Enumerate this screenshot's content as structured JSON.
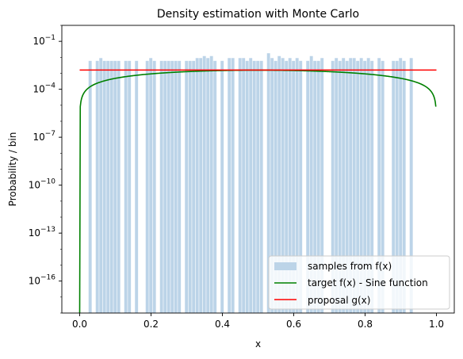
{
  "chart_data": {
    "type": "bar",
    "title": "Density estimation with Monte Carlo",
    "xlabel": "x",
    "ylabel": "Probability / bin",
    "xlim": [
      -0.05,
      1.05
    ],
    "ylim": [
      1e-18,
      1.0
    ],
    "yscale": "log",
    "x_ticks": [
      {
        "value": 0.0,
        "label": "0.0"
      },
      {
        "value": 0.2,
        "label": "0.2"
      },
      {
        "value": 0.4,
        "label": "0.4"
      },
      {
        "value": 0.6,
        "label": "0.6"
      },
      {
        "value": 0.8,
        "label": "0.8"
      },
      {
        "value": 1.0,
        "label": "1.0"
      }
    ],
    "y_ticks": [
      {
        "exp": -1,
        "label_base": "10",
        "label_exp": "−1"
      },
      {
        "exp": -4,
        "label_base": "10",
        "label_exp": "−4"
      },
      {
        "exp": -7,
        "label_base": "10",
        "label_exp": "−7"
      },
      {
        "exp": -10,
        "label_base": "10",
        "label_exp": "−10"
      },
      {
        "exp": -13,
        "label_base": "10",
        "label_exp": "−13"
      },
      {
        "exp": -16,
        "label_base": "10",
        "label_exp": "−16"
      }
    ],
    "histogram": {
      "name": "samples from f(x)",
      "color": "#bcd4e8",
      "bin_width": 0.01,
      "bins": [
        {
          "x": 0.03,
          "y": 0.006
        },
        {
          "x": 0.05,
          "y": 0.006
        },
        {
          "x": 0.06,
          "y": 0.009
        },
        {
          "x": 0.07,
          "y": 0.006
        },
        {
          "x": 0.08,
          "y": 0.006
        },
        {
          "x": 0.09,
          "y": 0.006
        },
        {
          "x": 0.1,
          "y": 0.006
        },
        {
          "x": 0.11,
          "y": 0.006
        },
        {
          "x": 0.13,
          "y": 0.006
        },
        {
          "x": 0.14,
          "y": 0.006
        },
        {
          "x": 0.16,
          "y": 0.006
        },
        {
          "x": 0.19,
          "y": 0.006
        },
        {
          "x": 0.2,
          "y": 0.009
        },
        {
          "x": 0.21,
          "y": 0.006
        },
        {
          "x": 0.23,
          "y": 0.006
        },
        {
          "x": 0.24,
          "y": 0.006
        },
        {
          "x": 0.25,
          "y": 0.006
        },
        {
          "x": 0.26,
          "y": 0.006
        },
        {
          "x": 0.27,
          "y": 0.006
        },
        {
          "x": 0.28,
          "y": 0.006
        },
        {
          "x": 0.3,
          "y": 0.006
        },
        {
          "x": 0.31,
          "y": 0.006
        },
        {
          "x": 0.32,
          "y": 0.006
        },
        {
          "x": 0.33,
          "y": 0.009
        },
        {
          "x": 0.34,
          "y": 0.009
        },
        {
          "x": 0.35,
          "y": 0.012
        },
        {
          "x": 0.36,
          "y": 0.009
        },
        {
          "x": 0.37,
          "y": 0.012
        },
        {
          "x": 0.38,
          "y": 0.006
        },
        {
          "x": 0.4,
          "y": 0.006
        },
        {
          "x": 0.42,
          "y": 0.009
        },
        {
          "x": 0.43,
          "y": 0.009
        },
        {
          "x": 0.45,
          "y": 0.009
        },
        {
          "x": 0.46,
          "y": 0.009
        },
        {
          "x": 0.47,
          "y": 0.006
        },
        {
          "x": 0.48,
          "y": 0.009
        },
        {
          "x": 0.49,
          "y": 0.006
        },
        {
          "x": 0.5,
          "y": 0.006
        },
        {
          "x": 0.51,
          "y": 0.006
        },
        {
          "x": 0.53,
          "y": 0.018
        },
        {
          "x": 0.54,
          "y": 0.009
        },
        {
          "x": 0.55,
          "y": 0.006
        },
        {
          "x": 0.56,
          "y": 0.012
        },
        {
          "x": 0.57,
          "y": 0.009
        },
        {
          "x": 0.58,
          "y": 0.006
        },
        {
          "x": 0.59,
          "y": 0.009
        },
        {
          "x": 0.6,
          "y": 0.006
        },
        {
          "x": 0.61,
          "y": 0.009
        },
        {
          "x": 0.62,
          "y": 0.006
        },
        {
          "x": 0.64,
          "y": 0.006
        },
        {
          "x": 0.65,
          "y": 0.012
        },
        {
          "x": 0.66,
          "y": 0.006
        },
        {
          "x": 0.67,
          "y": 0.006
        },
        {
          "x": 0.68,
          "y": 0.009
        },
        {
          "x": 0.71,
          "y": 0.006
        },
        {
          "x": 0.72,
          "y": 0.009
        },
        {
          "x": 0.73,
          "y": 0.006
        },
        {
          "x": 0.74,
          "y": 0.009
        },
        {
          "x": 0.75,
          "y": 0.006
        },
        {
          "x": 0.76,
          "y": 0.009
        },
        {
          "x": 0.77,
          "y": 0.009
        },
        {
          "x": 0.78,
          "y": 0.006
        },
        {
          "x": 0.79,
          "y": 0.009
        },
        {
          "x": 0.8,
          "y": 0.006
        },
        {
          "x": 0.81,
          "y": 0.009
        },
        {
          "x": 0.82,
          "y": 0.006
        },
        {
          "x": 0.84,
          "y": 0.009
        },
        {
          "x": 0.85,
          "y": 0.006
        },
        {
          "x": 0.88,
          "y": 0.006
        },
        {
          "x": 0.89,
          "y": 0.006
        },
        {
          "x": 0.9,
          "y": 0.009
        },
        {
          "x": 0.91,
          "y": 0.006
        },
        {
          "x": 0.93,
          "y": 0.009
        }
      ]
    },
    "target": {
      "name": "target f(x) - Sine function",
      "color": "#008000",
      "amplitude": 0.00157
    },
    "proposal": {
      "name": "proposal g(x)",
      "color": "#ff0000",
      "x": [
        0.0,
        1.0
      ],
      "y": [
        0.0016,
        0.0016
      ]
    },
    "legend_position": "lower right",
    "grid": false
  }
}
